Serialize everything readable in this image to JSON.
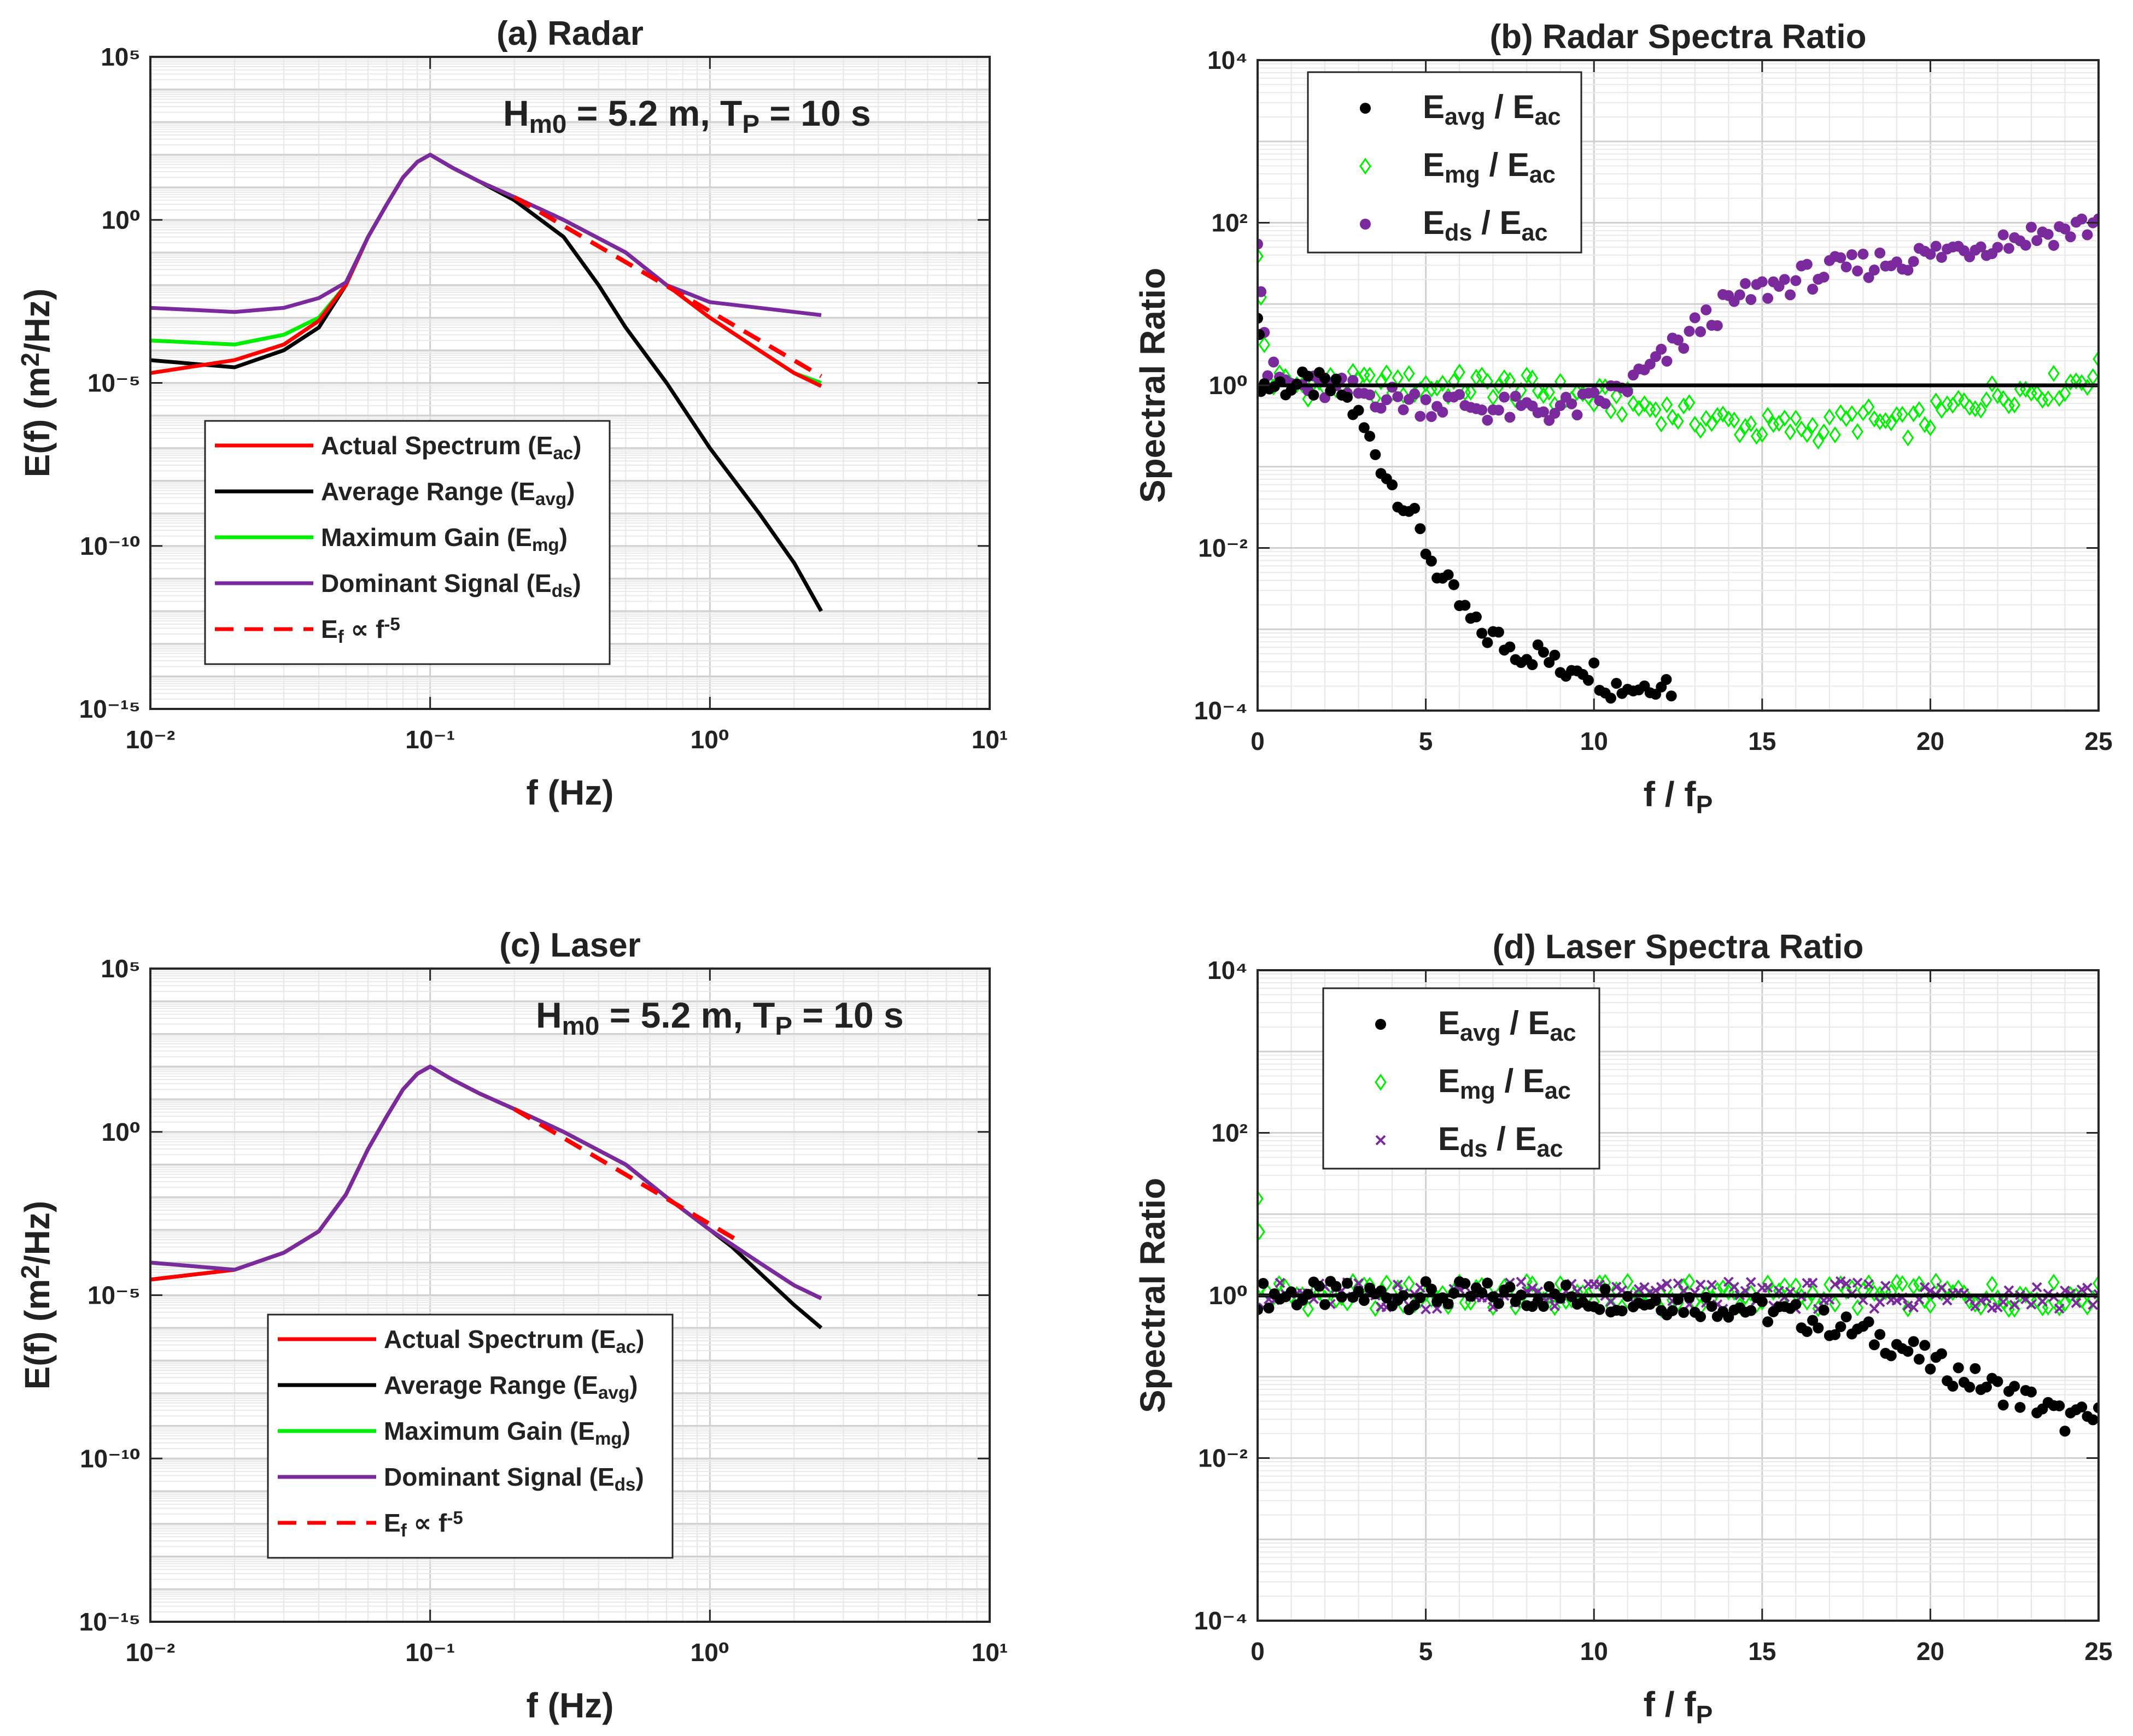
{
  "chart_data": [
    {
      "panel": "a",
      "type": "line",
      "title": "(a) Radar",
      "xlabel": "f (Hz)",
      "ylabel": "E(f) (m²/Hz)",
      "xscale": "log",
      "yscale": "log",
      "xlim": [
        0.01,
        10
      ],
      "ylim": [
        1e-15,
        100000.0
      ],
      "xtick_labels": [
        "10⁻²",
        "10⁻¹",
        "10⁰",
        "10¹"
      ],
      "ytick_labels": [
        "10⁻¹⁵",
        "10⁻¹⁰",
        "10⁻⁵",
        "10⁰",
        "10⁵"
      ],
      "annotation": "Hm0 = 5.2 m, TP = 10 s",
      "grid": true,
      "legend_position": "lower-left",
      "legend": [
        "Actual Spectrum (Eac)",
        "Average Range (Eavg)",
        "Maximum Gain (Emg)",
        "Dominant Signal (Eds)",
        "Ef ∝ f⁻⁵"
      ],
      "series": [
        {
          "name": "Actual Spectrum (Eac)",
          "color": "#ff0000",
          "x": [
            0.01,
            0.02,
            0.03,
            0.04,
            0.05,
            0.06,
            0.07,
            0.08,
            0.09,
            0.1,
            0.12,
            0.15,
            0.2,
            0.3,
            0.5,
            0.7,
            1.0,
            1.5,
            2.0,
            2.5
          ],
          "y": [
            2e-05,
            5e-05,
            0.00015,
            0.0008,
            0.01,
            0.3,
            3,
            20,
            60,
            100,
            40,
            15,
            5,
            1,
            0.1,
            0.01,
            0.001,
            0.0001,
            2e-05,
            8e-06
          ]
        },
        {
          "name": "Average Range (Eavg)",
          "color": "#000000",
          "x": [
            0.01,
            0.02,
            0.03,
            0.04,
            0.05,
            0.06,
            0.07,
            0.08,
            0.09,
            0.1,
            0.12,
            0.15,
            0.2,
            0.3,
            0.4,
            0.5,
            0.7,
            1.0,
            1.5,
            2.0,
            2.5
          ],
          "y": [
            5e-05,
            3e-05,
            0.0001,
            0.0005,
            0.01,
            0.3,
            3,
            20,
            60,
            100,
            40,
            15,
            4,
            0.3,
            0.01,
            0.0005,
            1e-05,
            1e-07,
            1e-09,
            3e-11,
            1e-12
          ]
        },
        {
          "name": "Maximum Gain (Emg)",
          "color": "#00ee00",
          "x": [
            0.01,
            0.02,
            0.03,
            0.04,
            0.05,
            0.06,
            0.07,
            0.08,
            0.09,
            0.1,
            0.12,
            0.15,
            0.2,
            0.3,
            0.5,
            0.7,
            1.0,
            1.5,
            2.0,
            2.5
          ],
          "y": [
            0.0002,
            0.00015,
            0.0003,
            0.001,
            0.01,
            0.3,
            3,
            20,
            60,
            100,
            40,
            15,
            5,
            1,
            0.1,
            0.01,
            0.001,
            0.0001,
            2e-05,
            1e-05
          ]
        },
        {
          "name": "Dominant Signal (Eds)",
          "color": "#7b2a9e",
          "x": [
            0.01,
            0.02,
            0.03,
            0.04,
            0.05,
            0.06,
            0.07,
            0.08,
            0.09,
            0.1,
            0.12,
            0.15,
            0.2,
            0.3,
            0.5,
            0.7,
            1.0,
            1.5,
            2.0,
            2.5
          ],
          "y": [
            0.002,
            0.0015,
            0.002,
            0.004,
            0.012,
            0.3,
            3,
            20,
            60,
            100,
            40,
            15,
            5,
            1,
            0.1,
            0.01,
            0.003,
            0.002,
            0.0015,
            0.0012
          ]
        },
        {
          "name": "Ef ∝ f⁻⁵",
          "color": "#ff0000",
          "dashed": true,
          "x": [
            0.2,
            2.5
          ],
          "y": [
            5,
            1.6e-05
          ]
        }
      ]
    },
    {
      "panel": "b",
      "type": "scatter",
      "title": "(b) Radar Spectra Ratio",
      "xlabel": "f / fP",
      "ylabel": "Spectral Ratio",
      "xscale": "linear",
      "yscale": "log",
      "xlim": [
        0,
        25
      ],
      "ylim": [
        0.0001,
        10000.0
      ],
      "xtick_labels": [
        "0",
        "5",
        "10",
        "15",
        "20",
        "25"
      ],
      "ytick_labels": [
        "10⁻⁴",
        "10⁻²",
        "10⁰",
        "10²",
        "10⁴"
      ],
      "grid": true,
      "legend_position": "top-left",
      "legend": [
        "Eavg / Eac",
        "Emg / Eac",
        "Eds / Eac"
      ],
      "reference_line": 1,
      "series": [
        {
          "name": "Eavg / Eac",
          "marker": "dot",
          "color": "#000000",
          "x": [
            0,
            0.05,
            0.1,
            0.2,
            0.5,
            1,
            1.5,
            2,
            2.5,
            3,
            3.5,
            4,
            4.5,
            5,
            5.5,
            6,
            6.5,
            7,
            7.5,
            8,
            8.5,
            9,
            9.5,
            10,
            10.5,
            11,
            11.5,
            12,
            12.3
          ],
          "y": [
            10,
            3,
            1.2,
            1,
            1,
            1,
            1,
            0.95,
            0.8,
            0.4,
            0.15,
            0.06,
            0.03,
            0.01,
            0.004,
            0.002,
            0.001,
            0.0008,
            0.0006,
            0.0005,
            0.0005,
            0.0003,
            0.0004,
            0.0003,
            0.0002,
            0.0002,
            0.0002,
            0.00025,
            0.0002
          ]
        },
        {
          "name": "Emg / Eac",
          "marker": "diamond",
          "color": "#00ee00",
          "x": [
            0,
            0.1,
            0.2,
            0.3,
            1,
            2,
            3,
            4,
            5,
            6,
            7,
            8,
            9,
            10,
            11,
            12,
            13,
            14,
            15,
            16,
            17,
            18,
            19,
            20,
            21,
            22,
            23,
            24,
            25
          ],
          "y": [
            50,
            10,
            3,
            1.2,
            1,
            1,
            1,
            1,
            1,
            1,
            1,
            0.9,
            0.8,
            0.7,
            0.6,
            0.5,
            0.4,
            0.35,
            0.3,
            0.3,
            0.3,
            0.4,
            0.3,
            0.4,
            0.6,
            0.8,
            0.9,
            1,
            1.5
          ]
        },
        {
          "name": "Eds / Eac",
          "marker": "dot",
          "color": "#7b2a9e",
          "x": [
            0,
            0.1,
            0.2,
            0.3,
            1,
            2,
            3,
            4,
            5,
            6,
            7,
            8,
            9,
            10,
            11,
            12,
            13,
            14,
            15,
            16,
            17,
            18,
            19,
            20,
            21,
            22,
            23,
            24,
            25
          ],
          "y": [
            80,
            20,
            5,
            1.5,
            1,
            0.9,
            0.8,
            0.7,
            0.6,
            0.6,
            0.5,
            0.5,
            0.5,
            0.6,
            1,
            2,
            5,
            10,
            15,
            20,
            25,
            30,
            35,
            40,
            50,
            60,
            70,
            80,
            100
          ]
        }
      ]
    },
    {
      "panel": "c",
      "type": "line",
      "title": "(c) Laser",
      "xlabel": "f (Hz)",
      "ylabel": "E(f) (m²/Hz)",
      "xscale": "log",
      "yscale": "log",
      "xlim": [
        0.01,
        10
      ],
      "ylim": [
        1e-15,
        100000.0
      ],
      "xtick_labels": [
        "10⁻²",
        "10⁻¹",
        "10⁰",
        "10¹"
      ],
      "ytick_labels": [
        "10⁻¹⁵",
        "10⁻¹⁰",
        "10⁻⁵",
        "10⁰",
        "10⁵"
      ],
      "annotation": "Hm0 = 5.2 m, TP = 10 s",
      "grid": true,
      "legend_position": "lower-center",
      "legend": [
        "Actual Spectrum (Eac)",
        "Average Range (Eavg)",
        "Maximum Gain (Emg)",
        "Dominant Signal (Eds)",
        "Ef ∝ f⁻⁵"
      ],
      "series": [
        {
          "name": "Actual Spectrum (Eac)",
          "color": "#ff0000",
          "x": [
            0.01,
            0.02,
            0.03,
            0.04,
            0.05,
            0.06,
            0.07,
            0.08,
            0.09,
            0.1,
            0.12,
            0.15,
            0.2,
            0.3,
            0.5,
            0.7,
            1.0,
            1.5,
            2.0,
            2.5
          ],
          "y": [
            3e-05,
            6e-05,
            0.0002,
            0.0009,
            0.012,
            0.3,
            3,
            20,
            60,
            100,
            40,
            15,
            5,
            1,
            0.1,
            0.01,
            0.001,
            0.0001,
            2e-05,
            8e-06
          ]
        },
        {
          "name": "Average Range (Eavg)",
          "color": "#000000",
          "x": [
            0.01,
            0.02,
            0.03,
            0.04,
            0.05,
            0.06,
            0.07,
            0.08,
            0.09,
            0.1,
            0.12,
            0.15,
            0.2,
            0.3,
            0.5,
            0.7,
            1.0,
            1.2,
            1.5,
            2.0,
            2.5
          ],
          "y": [
            3e-05,
            6e-05,
            0.0002,
            0.0009,
            0.012,
            0.3,
            3,
            20,
            60,
            100,
            40,
            15,
            5,
            1,
            0.1,
            0.01,
            0.001,
            0.0003,
            5e-05,
            5e-06,
            1e-06
          ]
        },
        {
          "name": "Maximum Gain (Emg)",
          "color": "#00ee00",
          "x": [
            0.01,
            0.02,
            0.03,
            0.04,
            0.05,
            0.06,
            0.07,
            0.08,
            0.09,
            0.1,
            0.12,
            0.15,
            0.2,
            0.3,
            0.5,
            0.7,
            1.0,
            1.5,
            2.0,
            2.5
          ],
          "y": [
            0.0001,
            6e-05,
            0.0002,
            0.0009,
            0.012,
            0.3,
            3,
            20,
            60,
            100,
            40,
            15,
            5,
            1,
            0.1,
            0.01,
            0.001,
            0.0001,
            2e-05,
            8e-06
          ]
        },
        {
          "name": "Dominant Signal (Eds)",
          "color": "#7b2a9e",
          "x": [
            0.01,
            0.02,
            0.03,
            0.04,
            0.05,
            0.06,
            0.07,
            0.08,
            0.09,
            0.1,
            0.12,
            0.15,
            0.2,
            0.3,
            0.5,
            0.7,
            1.0,
            1.5,
            2.0,
            2.5
          ],
          "y": [
            0.0001,
            6e-05,
            0.0002,
            0.0009,
            0.012,
            0.3,
            3,
            20,
            60,
            100,
            40,
            15,
            5,
            1,
            0.1,
            0.01,
            0.001,
            0.0001,
            2e-05,
            8e-06
          ]
        },
        {
          "name": "Ef ∝ f⁻⁵",
          "color": "#ff0000",
          "dashed": true,
          "x": [
            0.2,
            1.3
          ],
          "y": [
            5,
            0.0004
          ]
        }
      ]
    },
    {
      "panel": "d",
      "type": "scatter",
      "title": "(d) Laser Spectra Ratio",
      "xlabel": "f / fP",
      "ylabel": "Spectral Ratio",
      "xscale": "linear",
      "yscale": "log",
      "xlim": [
        0,
        25
      ],
      "ylim": [
        0.0001,
        10000.0
      ],
      "xtick_labels": [
        "0",
        "5",
        "10",
        "15",
        "20",
        "25"
      ],
      "ytick_labels": [
        "10⁻⁴",
        "10⁻²",
        "10⁰",
        "10²",
        "10⁴"
      ],
      "grid": true,
      "legend_position": "top-left",
      "legend": [
        "Eavg / Eac",
        "Emg / Eac",
        "Eds / Eac"
      ],
      "reference_line": 1,
      "series": [
        {
          "name": "Eavg / Eac",
          "marker": "dot",
          "color": "#000000",
          "x": [
            0,
            1,
            2,
            3,
            4,
            5,
            6,
            7,
            8,
            9,
            10,
            11,
            12,
            13,
            14,
            15,
            16,
            17,
            18,
            19,
            20,
            21,
            22,
            23,
            24,
            25
          ],
          "y": [
            1,
            1,
            1,
            1,
            1,
            1,
            1,
            1,
            1,
            1,
            0.95,
            0.9,
            0.85,
            0.8,
            0.75,
            0.65,
            0.55,
            0.45,
            0.35,
            0.25,
            0.15,
            0.1,
            0.07,
            0.05,
            0.03,
            0.03
          ]
        },
        {
          "name": "Emg / Eac",
          "marker": "diamond",
          "color": "#00ee00",
          "x": [
            0,
            0.05,
            0.1,
            1,
            5,
            10,
            15,
            20,
            25
          ],
          "y": [
            20,
            5,
            1.2,
            1,
            1,
            1,
            1,
            1,
            1
          ]
        },
        {
          "name": "Eds / Eac",
          "marker": "cross",
          "color": "#7b2a9e",
          "x": [
            0,
            1,
            5,
            10,
            15,
            20,
            25
          ],
          "y": [
            1,
            1,
            1,
            1,
            1,
            1,
            1
          ]
        }
      ]
    }
  ]
}
